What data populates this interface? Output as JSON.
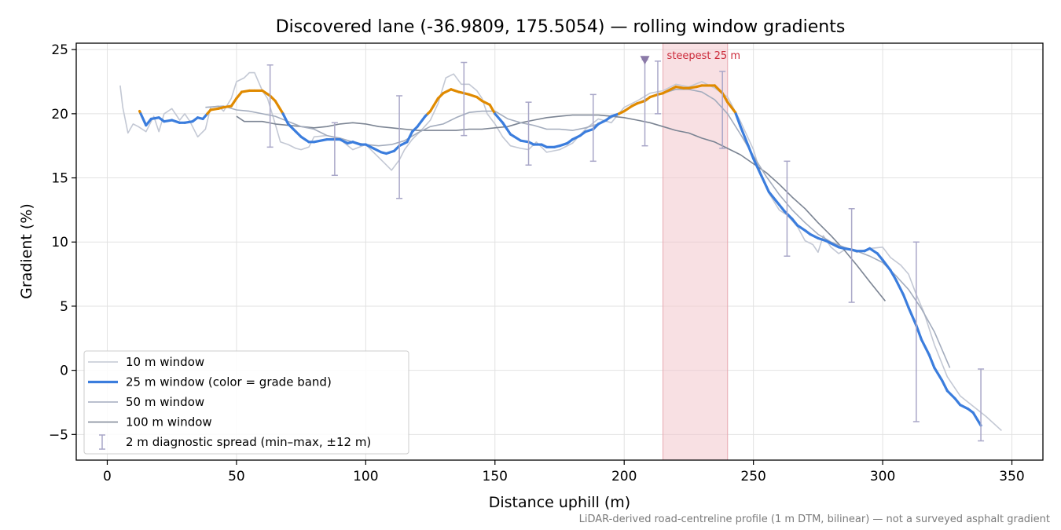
{
  "chart_data": {
    "type": "line",
    "title": "Discovered lane (-36.9809, 175.5054) — rolling window gradients",
    "xlabel": "Distance uphill (m)",
    "ylabel": "Gradient (%)",
    "xlim": [
      -12,
      362
    ],
    "ylim": [
      -7,
      25.5
    ],
    "xticks": [
      0,
      50,
      100,
      150,
      200,
      250,
      300,
      350
    ],
    "yticks": [
      -5,
      0,
      5,
      10,
      15,
      20,
      25
    ],
    "xtick_labels": [
      "0",
      "50",
      "100",
      "150",
      "200",
      "250",
      "300",
      "350"
    ],
    "ytick_labels": [
      "−5",
      "0",
      "5",
      "10",
      "15",
      "20",
      "25"
    ],
    "grid": true,
    "legend_position": "lower-left",
    "colors": {
      "w10": "#c3c8d4",
      "w25_normal": "#3b7ddd",
      "w25_steep": "#e08a00",
      "w50": "#a3acbd",
      "w100": "#7b8493",
      "errorbar": "#a9a7c8",
      "highlight": "#f2c6cc",
      "marker": "#8b7aa8",
      "annotation": "#cc2a3a"
    },
    "steep_threshold": 20,
    "steepest_window": {
      "x": [
        215,
        240
      ],
      "label": "steepest 25 m"
    },
    "marker": {
      "x": 208,
      "y": 24.2
    },
    "series": [
      {
        "name": "10 m window",
        "key": "w10",
        "x": [
          5,
          6,
          8,
          10,
          12,
          15,
          18,
          20,
          22,
          25,
          28,
          30,
          32,
          35,
          38,
          40,
          43,
          45,
          48,
          50,
          53,
          55,
          57,
          60,
          62,
          65,
          67,
          70,
          73,
          75,
          78,
          80,
          85,
          90,
          95,
          100,
          103,
          107,
          110,
          113,
          115,
          118,
          121,
          125,
          128,
          131,
          134,
          137,
          140,
          143,
          145,
          147,
          150,
          153,
          156,
          160,
          163,
          166,
          170,
          175,
          180,
          185,
          190,
          195,
          200,
          205,
          210,
          215,
          220,
          225,
          230,
          235,
          240,
          245,
          250,
          253,
          256,
          260,
          263,
          267,
          270,
          273,
          275,
          277,
          280,
          283,
          286,
          290,
          295,
          300,
          303,
          307,
          310,
          313,
          316,
          320,
          325,
          330,
          335,
          340,
          346
        ],
        "y": [
          22.2,
          20.5,
          18.5,
          19.2,
          19,
          18.6,
          19.8,
          18.6,
          20,
          20.4,
          19.5,
          20,
          19.4,
          18.2,
          18.8,
          20.5,
          20.6,
          20.2,
          21.2,
          22.5,
          22.8,
          23.2,
          23.2,
          21.8,
          21.2,
          19.2,
          17.8,
          17.6,
          17.3,
          17.2,
          17.4,
          18.2,
          18.3,
          18,
          17.2,
          17.6,
          17,
          16.2,
          15.6,
          16.4,
          17.2,
          18,
          18.6,
          19.5,
          20.8,
          22.8,
          23.1,
          22.3,
          22.3,
          21.8,
          21.2,
          20,
          19.2,
          18.2,
          17.5,
          17.3,
          17.2,
          17.8,
          17,
          17.2,
          17.7,
          18.8,
          19.6,
          19.3,
          20.5,
          21,
          21.6,
          21.8,
          22.3,
          22.1,
          22.5,
          22,
          21.3,
          19.4,
          17.2,
          15.2,
          13.8,
          12.5,
          12.1,
          11.2,
          10.1,
          9.8,
          9.2,
          10.5,
          9.6,
          9.1,
          9.5,
          9.2,
          9.5,
          9.6,
          8.8,
          8.2,
          7.5,
          5.9,
          4.5,
          2,
          -0.5,
          -2,
          -2.8,
          -3.6,
          -4.7
        ]
      },
      {
        "name": "25 m window (color = grade band)",
        "key": "w25",
        "x": [
          12.5,
          15,
          17,
          20,
          22,
          25,
          28,
          30,
          33,
          35,
          37,
          40,
          43,
          45,
          48,
          50,
          52,
          55,
          57,
          60,
          63,
          65,
          68,
          70,
          73,
          75,
          78,
          80,
          85,
          88,
          90,
          93,
          95,
          98,
          100,
          103,
          106,
          108,
          111,
          113,
          116,
          118,
          120,
          123,
          125,
          128,
          130,
          133,
          136,
          138,
          140,
          143,
          145,
          148,
          150,
          153,
          156,
          160,
          163,
          165,
          168,
          170,
          173,
          175,
          178,
          180,
          183,
          185,
          188,
          190,
          193,
          195,
          198,
          200,
          203,
          205,
          208,
          210,
          213,
          215,
          218,
          220,
          223,
          225,
          228,
          230,
          233,
          235,
          238,
          240,
          243,
          245,
          248,
          250,
          253,
          256,
          260,
          262,
          265,
          267,
          270,
          272,
          275,
          278,
          280,
          283,
          285,
          288,
          290,
          293,
          295,
          298,
          300,
          303,
          305,
          308,
          310,
          313,
          315,
          318,
          320,
          323,
          325,
          328,
          330,
          333,
          335,
          338
        ],
        "y": [
          20.2,
          19.1,
          19.6,
          19.7,
          19.4,
          19.5,
          19.3,
          19.3,
          19.4,
          19.7,
          19.6,
          20.3,
          20.4,
          20.5,
          20.6,
          21.2,
          21.7,
          21.8,
          21.8,
          21.8,
          21.4,
          21,
          20,
          19.2,
          18.6,
          18.2,
          17.8,
          17.8,
          18,
          18,
          18,
          17.7,
          17.8,
          17.6,
          17.6,
          17.3,
          17,
          16.9,
          17.1,
          17.5,
          17.8,
          18.6,
          19,
          19.8,
          20.2,
          21.2,
          21.6,
          21.9,
          21.7,
          21.6,
          21.5,
          21.3,
          21,
          20.7,
          20,
          19.3,
          18.4,
          17.9,
          17.8,
          17.6,
          17.6,
          17.4,
          17.4,
          17.5,
          17.7,
          18,
          18.3,
          18.6,
          18.8,
          19.2,
          19.5,
          19.8,
          20,
          20.2,
          20.6,
          20.8,
          21,
          21.3,
          21.5,
          21.6,
          21.9,
          22.1,
          22,
          22,
          22.1,
          22.2,
          22.2,
          22.2,
          21.6,
          20.9,
          20.1,
          19,
          17.5,
          16.5,
          15.2,
          13.9,
          12.9,
          12.4,
          11.8,
          11.3,
          10.9,
          10.6,
          10.3,
          10.1,
          9.9,
          9.6,
          9.5,
          9.4,
          9.3,
          9.3,
          9.5,
          9.1,
          8.6,
          7.8,
          7.1,
          5.9,
          4.9,
          3.5,
          2.4,
          1.2,
          0.2,
          -0.8,
          -1.6,
          -2.2,
          -2.7,
          -3,
          -3.3,
          -4.3
        ]
      },
      {
        "name": "50 m window",
        "key": "w50",
        "x": [
          38,
          45,
          50,
          55,
          60,
          65,
          70,
          75,
          80,
          85,
          90,
          95,
          100,
          105,
          110,
          115,
          120,
          125,
          130,
          135,
          140,
          145,
          150,
          155,
          160,
          165,
          170,
          175,
          180,
          185,
          190,
          195,
          200,
          205,
          210,
          215,
          220,
          225,
          230,
          235,
          240,
          245,
          250,
          255,
          260,
          265,
          270,
          275,
          280,
          285,
          290,
          295,
          300,
          305,
          310,
          315,
          320,
          326
        ],
        "y": [
          20.5,
          20.6,
          20.3,
          20.2,
          20,
          19.8,
          19.4,
          19,
          18.8,
          18.3,
          18.1,
          17.8,
          17.6,
          17.5,
          17.6,
          17.9,
          18.5,
          19,
          19.2,
          19.7,
          20.1,
          20.2,
          20.2,
          19.6,
          19.3,
          19.1,
          18.8,
          18.8,
          18.7,
          18.9,
          19.2,
          19.7,
          20.2,
          20.8,
          21.3,
          21.6,
          21.9,
          21.9,
          21.7,
          21.1,
          20,
          18.4,
          16.7,
          15.1,
          13.7,
          12.5,
          11.5,
          10.6,
          10,
          9.6,
          9.3,
          8.9,
          8.4,
          7.4,
          6.3,
          4.8,
          3,
          0.2
        ]
      },
      {
        "name": "100 m window",
        "key": "w100",
        "x": [
          50,
          53,
          55,
          60,
          65,
          70,
          75,
          80,
          85,
          90,
          95,
          100,
          105,
          110,
          115,
          120,
          125,
          130,
          135,
          140,
          145,
          150,
          155,
          160,
          165,
          170,
          175,
          180,
          185,
          190,
          195,
          200,
          205,
          210,
          215,
          220,
          225,
          230,
          235,
          240,
          245,
          250,
          255,
          260,
          265,
          270,
          275,
          280,
          285,
          290,
          295,
          301
        ],
        "y": [
          19.8,
          19.4,
          19.4,
          19.4,
          19.2,
          19.1,
          19,
          18.9,
          19,
          19.2,
          19.3,
          19.2,
          19,
          18.9,
          18.8,
          18.7,
          18.7,
          18.7,
          18.7,
          18.8,
          18.8,
          18.9,
          19,
          19.3,
          19.5,
          19.7,
          19.8,
          19.9,
          19.9,
          19.9,
          19.8,
          19.7,
          19.5,
          19.3,
          19,
          18.7,
          18.5,
          18.1,
          17.8,
          17.3,
          16.8,
          16.1,
          15.4,
          14.5,
          13.5,
          12.6,
          11.5,
          10.5,
          9.4,
          8.2,
          6.9,
          5.4
        ]
      }
    ],
    "errorbars": {
      "name": "2 m diagnostic spread (min–max, ±12 m)",
      "x": [
        63,
        88,
        113,
        138,
        163,
        188,
        208,
        213,
        238,
        263,
        288,
        313,
        338
      ],
      "ymin": [
        17.4,
        15.2,
        13.4,
        18.3,
        16,
        16.3,
        17.5,
        20,
        17.3,
        8.9,
        5.3,
        -4,
        -5.5
      ],
      "ymax": [
        23.8,
        19.3,
        21.4,
        24,
        20.9,
        21.5,
        24.2,
        24.1,
        23.3,
        16.3,
        12.6,
        10,
        0.1
      ]
    },
    "footnote": "LiDAR-derived road-centreline profile (1 m DTM, bilinear) — not a surveyed asphalt gradient"
  }
}
